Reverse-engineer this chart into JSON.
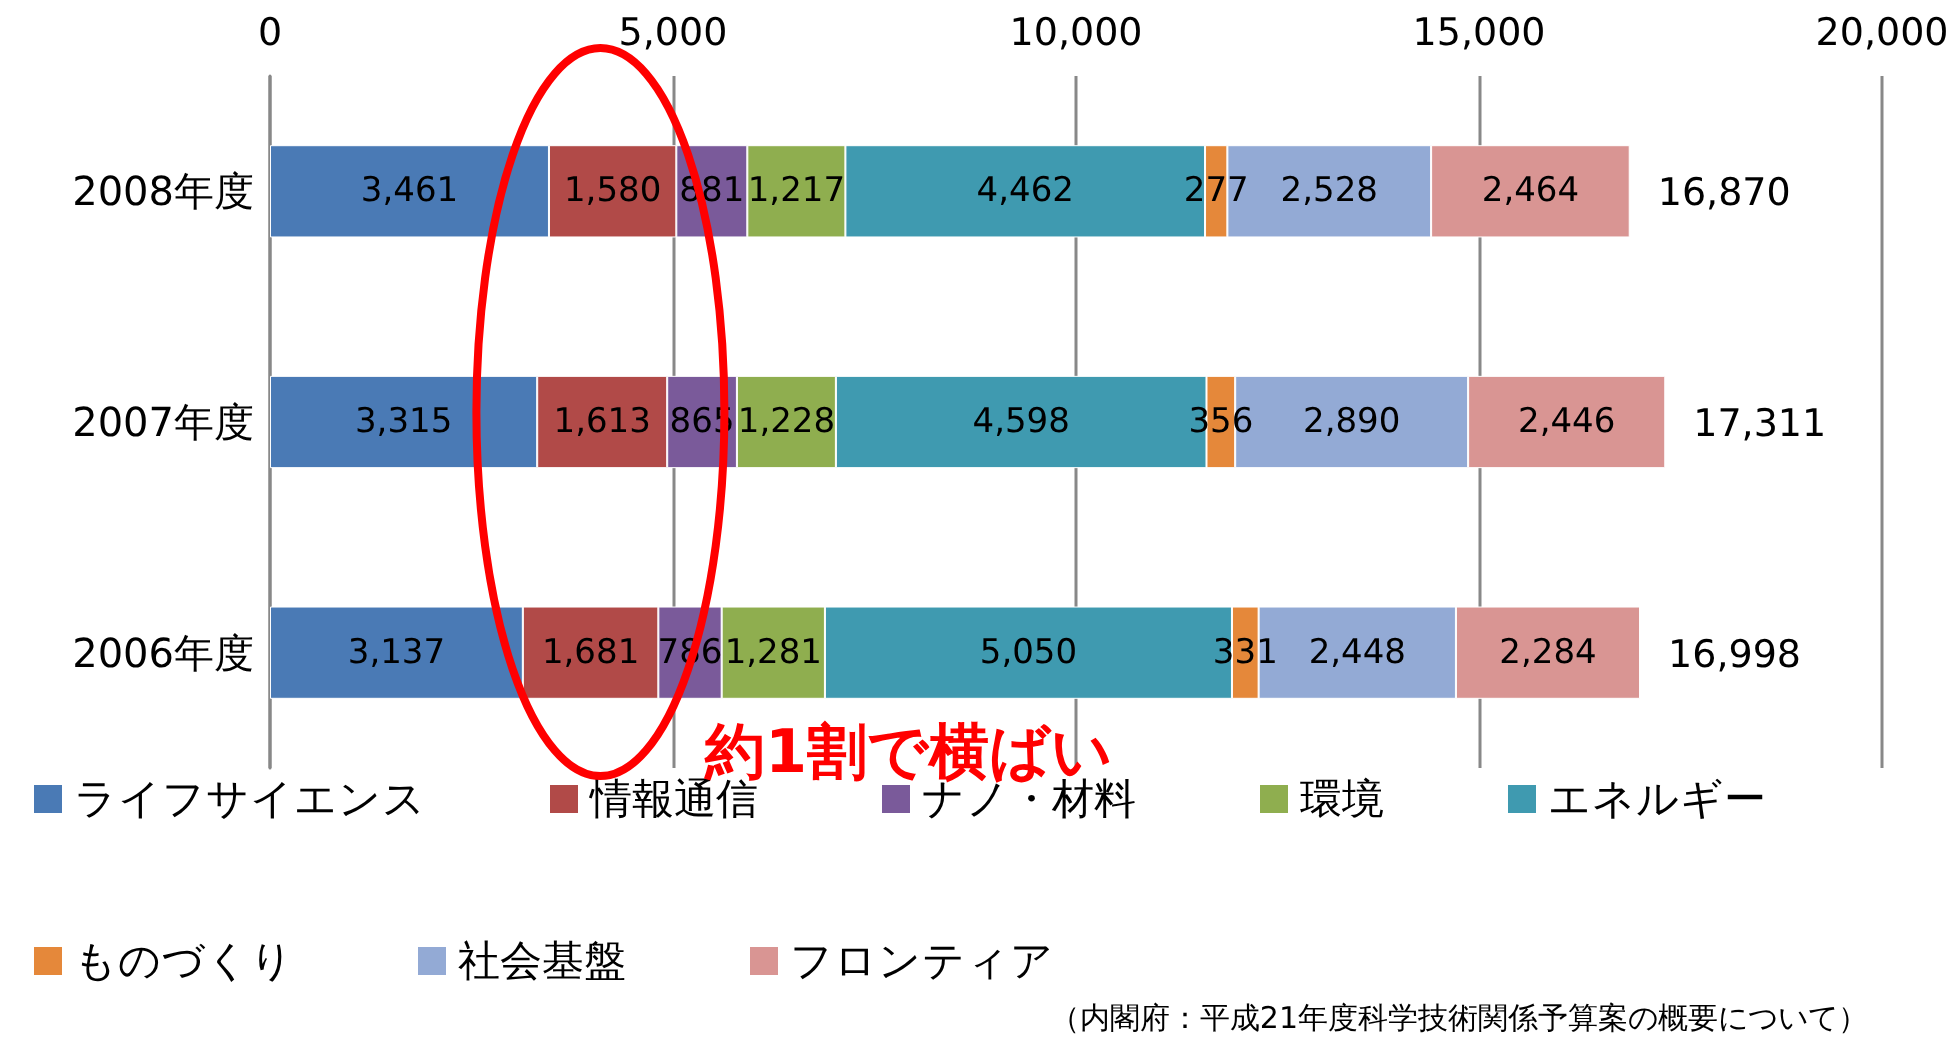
{
  "chart_data": {
    "type": "bar",
    "orientation": "horizontal",
    "stacked": true,
    "categories": [
      "2008年度",
      "2007年度",
      "2006年度"
    ],
    "series": [
      {
        "name": "ライフサイエンス",
        "color": "#4a7ab5",
        "values": [
          3461,
          3315,
          3137
        ],
        "value_labels": [
          "3,461",
          "3,315",
          "3,137"
        ]
      },
      {
        "name": "情報通信",
        "color": "#b14a48",
        "values": [
          1580,
          1613,
          1681
        ],
        "value_labels": [
          "1,580",
          "1,613",
          "1,681"
        ]
      },
      {
        "name": "ナノ・材料",
        "color": "#7a5a9a",
        "values": [
          881,
          865,
          786
        ],
        "value_labels": [
          "881",
          "865",
          "786"
        ]
      },
      {
        "name": "環境",
        "color": "#8fae4f",
        "values": [
          1217,
          1228,
          1281
        ],
        "value_labels": [
          "1,217",
          "1,228",
          "1,281"
        ]
      },
      {
        "name": "エネルギー",
        "color": "#3f9ab0",
        "values": [
          4462,
          4598,
          5050
        ],
        "value_labels": [
          "4,462",
          "4,598",
          "5,050"
        ]
      },
      {
        "name": "ものづくり",
        "color": "#e5883a",
        "values": [
          277,
          356,
          331
        ],
        "value_labels": [
          "277",
          "356",
          "331"
        ]
      },
      {
        "name": "社会基盤",
        "color": "#93aad5",
        "values": [
          2528,
          2890,
          2448
        ],
        "value_labels": [
          "2,528",
          "2,890",
          "2,448"
        ]
      },
      {
        "name": "フロンティア",
        "color": "#d99593",
        "values": [
          2464,
          2446,
          2284
        ],
        "value_labels": [
          "2,464",
          "2,446",
          "2,284"
        ]
      }
    ],
    "totals": [
      "16,870",
      "17,311",
      "16,998"
    ],
    "xlim": [
      0,
      20000
    ],
    "xticks": [
      {
        "value": 0,
        "label": "0"
      },
      {
        "value": 5000,
        "label": "5,000"
      },
      {
        "value": 10000,
        "label": "10,000"
      },
      {
        "value": 15000,
        "label": "15,000"
      },
      {
        "value": 20000,
        "label": "20,000"
      }
    ],
    "grid": "x",
    "legend": "bottom",
    "annotations": [
      "約1割で横ばい",
      "（内閣府：平成21年度科学技術関係予算案の概要について）"
    ]
  }
}
